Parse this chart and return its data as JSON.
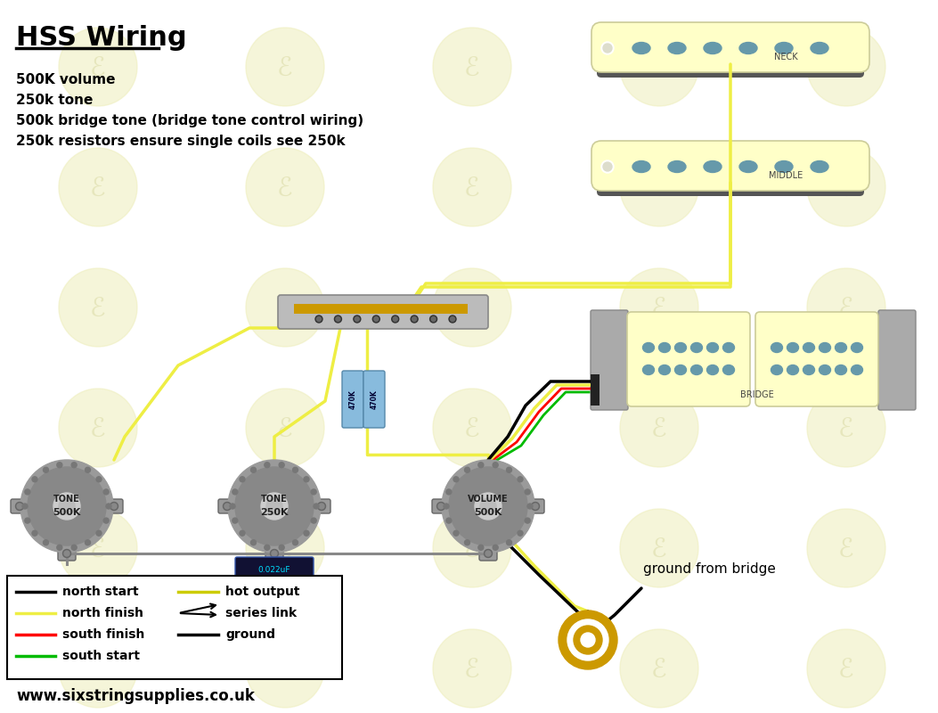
{
  "title": "HSS Wiring",
  "bg_color": "#ffffff",
  "info_lines": [
    "500K volume",
    "250k tone",
    "500k bridge tone (bridge tone control wiring)",
    "250k resistors ensure single coils see 250k"
  ],
  "website": "www.sixstringsupplies.co.uk",
  "cream": "#ffffc8",
  "pole_color": "#6699aa",
  "base_color": "#666666",
  "wire_yellow": "#eeee44",
  "wire_black": "#000000",
  "wire_gray": "#888888",
  "wire_red": "#ff0000",
  "wire_green": "#00bb00",
  "resistor_color": "#88bbdd",
  "cap_facecolor": "#111133",
  "jack_gold": "#cc9900",
  "switch_color": "#bbbbbb",
  "switch_gold": "#cc9900",
  "watermark_color": "#eeeebb",
  "legend_left": [
    [
      "#000000",
      "north start"
    ],
    [
      "#eeee44",
      "north finish"
    ],
    [
      "#ff0000",
      "south finish"
    ],
    [
      "#00bb00",
      "south start"
    ]
  ],
  "legend_right_lines": [
    [
      "#cccc00",
      "hot output"
    ],
    [
      "#000000",
      "ground"
    ]
  ],
  "legend_series_label": "series link"
}
